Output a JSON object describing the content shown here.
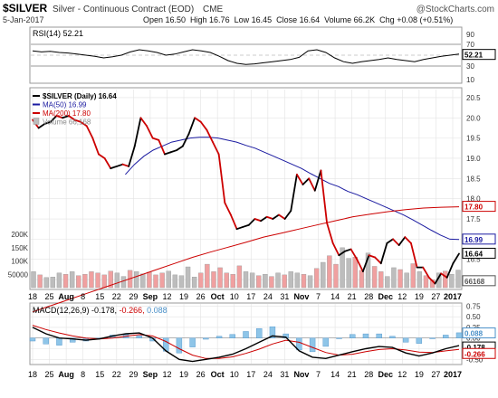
{
  "header": {
    "symbol": "$SILVER",
    "description": "Silver - Continuous Contract (EOD)",
    "exchange": "CME",
    "watermark": "@StockCharts.com",
    "date": "5-Jan-2017",
    "quote": "Open 16.50  High 16.76  Low 16.45  Close 16.64  Volume 66.2K  Chg +0.08 (+0.51%)"
  },
  "rsi": {
    "label": "RSI(14) 52.21",
    "value_badge": "52.21",
    "ticks": [
      "70",
      "50",
      "30",
      "90",
      "10"
    ],
    "color": "#000000"
  },
  "price": {
    "legend": [
      {
        "text": "$SILVER (Daily) 16.64",
        "color": "#000000"
      },
      {
        "text": "MA(50) 16.99",
        "color": "#1a1aa0"
      },
      {
        "text": "MA(200) 17.80",
        "color": "#cc0000"
      },
      {
        "text": "Volume 66,168",
        "color": "#888888"
      }
    ],
    "ticks": [
      "20.5",
      "20.0",
      "19.5",
      "19.0",
      "18.5",
      "18.0",
      "17.5",
      "17.0",
      "16.5",
      "16.0"
    ],
    "volume_ticks": [
      "200K",
      "150K",
      "100K",
      "50000"
    ],
    "badges": [
      {
        "text": "17.80",
        "color": "#cc0000"
      },
      {
        "text": "16.99",
        "color": "#1a1aa0"
      },
      {
        "text": "16.64",
        "color": "#000000"
      },
      {
        "text": "66168",
        "color": "#555555"
      }
    ]
  },
  "macd": {
    "label_name": "MACD(12,26,9)",
    "label_v1": " -0.178,",
    "label_v2": " -0.266,",
    "label_v3": " 0.088",
    "ticks": [
      "0.75",
      "0.50",
      "0.25",
      "0.00",
      "-0.25",
      "-0.50"
    ],
    "badges": [
      {
        "text": "0.088",
        "color": "#4a90c8"
      },
      {
        "text": "-0.178",
        "color": "#000000"
      },
      {
        "text": "-0.266",
        "color": "#cc0000"
      }
    ]
  },
  "x_axis": {
    "labels": [
      "18",
      "25",
      "Aug",
      "8",
      "15",
      "22",
      "29",
      "Sep",
      "12",
      "19",
      "26",
      "Oct",
      "10",
      "17",
      "24",
      "31",
      "Nov",
      "7",
      "14",
      "21",
      "28",
      "Dec",
      "12",
      "19",
      "27",
      "2017"
    ],
    "bold": [
      "Aug",
      "Sep",
      "Oct",
      "Nov",
      "Dec",
      "2017"
    ]
  },
  "chart_data": {
    "type": "line",
    "series": [
      {
        "name": "$SILVER",
        "values": [
          19.95,
          19.75,
          19.85,
          19.9,
          20.05,
          20.0,
          20.05,
          19.95,
          19.9,
          19.8,
          19.5,
          19.1,
          19.0,
          18.75,
          18.8,
          18.85,
          18.8,
          19.3,
          20.0,
          19.8,
          19.5,
          19.45,
          19.1,
          19.15,
          19.2,
          19.3,
          19.6,
          20.0,
          19.9,
          19.7,
          19.4,
          19.1,
          17.9,
          17.6,
          17.25,
          17.3,
          17.35,
          17.5,
          17.45,
          17.55,
          17.5,
          17.6,
          17.5,
          17.7,
          18.6,
          18.35,
          18.5,
          18.2,
          18.7,
          17.4,
          16.9,
          16.6,
          16.7,
          16.75,
          16.5,
          16.2,
          16.6,
          16.55,
          16.4,
          16.9,
          17.0,
          16.85,
          17.05,
          16.9,
          16.3,
          16.3,
          16.05,
          15.9,
          16.15,
          16.05,
          16.4,
          16.64
        ]
      },
      {
        "name": "MA(50)",
        "values": [
          null,
          null,
          null,
          null,
          null,
          null,
          null,
          null,
          null,
          null,
          18.6,
          18.85,
          19.05,
          19.2,
          19.3,
          19.4,
          19.45,
          19.5,
          19.52,
          19.52,
          19.5,
          19.45,
          19.4,
          19.32,
          19.25,
          19.15,
          19.05,
          18.95,
          18.85,
          18.75,
          18.62,
          18.5,
          18.38,
          18.3,
          18.18,
          18.1,
          18.0,
          17.9,
          17.8,
          17.7,
          17.6,
          17.48,
          17.35,
          17.22,
          17.1,
          17.0,
          16.99
        ]
      },
      {
        "name": "MA(200)",
        "values": [
          15.2,
          15.35,
          15.5,
          15.65,
          15.8,
          15.95,
          16.1,
          16.25,
          16.4,
          16.55,
          16.68,
          16.8,
          16.92,
          17.05,
          17.15,
          17.25,
          17.35,
          17.45,
          17.55,
          17.62,
          17.68,
          17.73,
          17.77,
          17.79,
          17.8
        ]
      },
      {
        "name": "Volume",
        "values": [
          60,
          48,
          38,
          40,
          55,
          50,
          60,
          45,
          50,
          60,
          55,
          48,
          62,
          55,
          42,
          65,
          60,
          52,
          58,
          48,
          55,
          62,
          48,
          45,
          78,
          40,
          55,
          88,
          60,
          75,
          55,
          50,
          82,
          60,
          55,
          45,
          50,
          42,
          55,
          48,
          60,
          55,
          50,
          45,
          72,
          95,
          120,
          88,
          150,
          110,
          115,
          65,
          130,
          80,
          60,
          42,
          75,
          68,
          55,
          90,
          60,
          45,
          30,
          55,
          62,
          50,
          66
        ]
      },
      {
        "name": "RSI(14)",
        "values": [
          58,
          56,
          57,
          55,
          54,
          52,
          50,
          48,
          45,
          47,
          50,
          56,
          60,
          58,
          55,
          50,
          52,
          56,
          60,
          58,
          55,
          48,
          40,
          35,
          33,
          34,
          36,
          38,
          40,
          42,
          46,
          58,
          60,
          55,
          45,
          38,
          35,
          38,
          40,
          42,
          45,
          42,
          40,
          38,
          42,
          45,
          48,
          50,
          52.21
        ]
      },
      {
        "name": "MACD",
        "values": [
          0.25,
          0.1,
          0.0,
          -0.02,
          -0.05,
          -0.02,
          0.05,
          0.1,
          0.12,
          0.0,
          -0.3,
          -0.5,
          -0.55,
          -0.5,
          -0.45,
          -0.38,
          -0.25,
          -0.1,
          0.05,
          0.02,
          -0.3,
          -0.45,
          -0.48,
          -0.4,
          -0.32,
          -0.25,
          -0.2,
          -0.22,
          -0.35,
          -0.42,
          -0.35,
          -0.25,
          -0.178
        ]
      },
      {
        "name": "Signal",
        "values": [
          0.3,
          0.2,
          0.12,
          0.05,
          0.0,
          -0.02,
          0.0,
          0.04,
          0.08,
          0.05,
          -0.08,
          -0.25,
          -0.4,
          -0.48,
          -0.48,
          -0.44,
          -0.36,
          -0.26,
          -0.14,
          -0.05,
          -0.1,
          -0.22,
          -0.34,
          -0.4,
          -0.38,
          -0.32,
          -0.27,
          -0.25,
          -0.28,
          -0.33,
          -0.34,
          -0.3,
          -0.266
        ]
      }
    ],
    "price_range": [
      15.8,
      20.7
    ],
    "volume_range": [
      0,
      265
    ],
    "rsi_range": [
      0,
      100
    ],
    "macd_range": [
      -0.6,
      0.8
    ]
  }
}
